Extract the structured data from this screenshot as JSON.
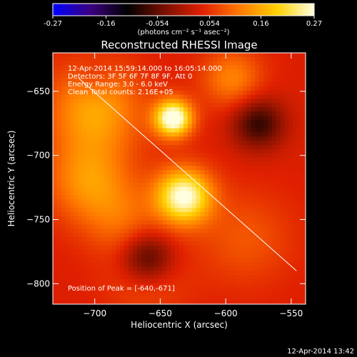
{
  "colorbar": {
    "tick_labels": [
      "-0.27",
      "-0.16",
      "-0.054",
      "0.054",
      "0.16",
      "0.27"
    ],
    "tick_values": [
      -0.27,
      -0.16,
      -0.054,
      0.054,
      0.16,
      0.27
    ],
    "range": [
      -0.27,
      0.27
    ],
    "unit_label": "(photons cm⁻² s⁻¹ asec⁻²)",
    "stops": [
      "#0000ff",
      "#3a0080",
      "#000000",
      "#7a1000",
      "#e02000",
      "#ff7800",
      "#ffd000",
      "#ffffe0"
    ]
  },
  "chart_data": {
    "type": "heatmap",
    "title": "Reconstructed RHESSI Image",
    "xlabel": "Heliocentric X (arcsec)",
    "ylabel": "Heliocentric Y (arcsec)",
    "xlim": [
      -732,
      -539
    ],
    "ylim": [
      -816,
      -620
    ],
    "x_ticks": [
      -700,
      -650,
      -600,
      -550
    ],
    "y_ticks": [
      -650,
      -700,
      -750,
      -800
    ],
    "x_tick_labels": [
      "−700",
      "−650",
      "−600",
      "−550"
    ],
    "y_tick_labels": [
      "−650",
      "−700",
      "−750",
      "−800"
    ],
    "annotations": [
      "12-Apr-2014 15:59:14.000 to 16:05:14.000",
      "Detectors: 3F 5F 6F 7F 8F 9F, Att 0",
      "Energy Range: 3.0 - 6.0 keV",
      "Clean    Total counts: 2.16E+05"
    ],
    "peak_text": "Position of Peak = [-640,-671]",
    "peak_position": [
      -640,
      -671
    ],
    "sources": [
      {
        "x": -640,
        "y": -671,
        "sigma": 10,
        "amp": 0.27
      },
      {
        "x": -632,
        "y": -732,
        "sigma": 15,
        "amp": 0.24
      },
      {
        "x": -700,
        "y": -665,
        "sigma": 25,
        "amp": 0.12
      },
      {
        "x": -705,
        "y": -720,
        "sigma": 22,
        "amp": 0.1
      },
      {
        "x": -680,
        "y": -750,
        "sigma": 20,
        "amp": 0.06
      },
      {
        "x": -595,
        "y": -640,
        "sigma": 16,
        "amp": 0.09
      },
      {
        "x": -585,
        "y": -765,
        "sigma": 25,
        "amp": 0.05
      },
      {
        "x": -660,
        "y": -800,
        "sigma": 22,
        "amp": 0.04
      },
      {
        "x": -660,
        "y": -780,
        "sigma": 14,
        "amp": -0.12
      },
      {
        "x": -575,
        "y": -675,
        "sigma": 14,
        "amp": -0.12
      },
      {
        "x": -700,
        "y": -640,
        "sigma": 10,
        "amp": -0.03
      }
    ],
    "limb_line": [
      [
        -712,
        -640
      ],
      [
        -546,
        -790
      ]
    ],
    "grid": false
  },
  "timestamp": "12-Apr-2014 13:42"
}
